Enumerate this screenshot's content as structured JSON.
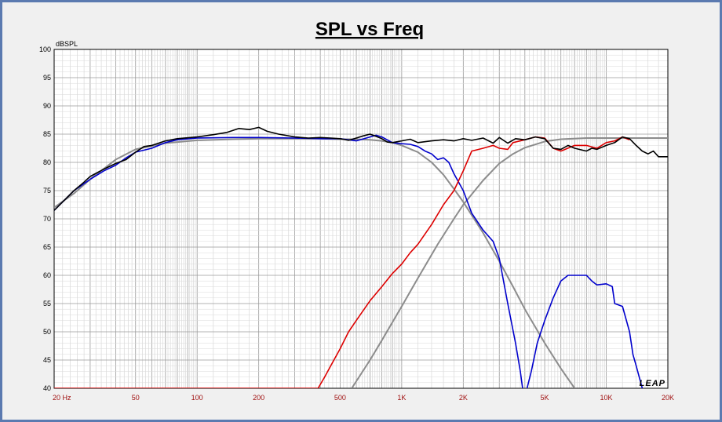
{
  "chart_data": {
    "type": "line",
    "title": "SPL vs Freq",
    "ylabel": "dBSPL",
    "x_scale": "log",
    "xlim": [
      20,
      20000
    ],
    "ylim": [
      40,
      100
    ],
    "y_ticks": [
      40,
      45,
      50,
      55,
      60,
      65,
      70,
      75,
      80,
      85,
      90,
      95,
      100
    ],
    "x_ticks": [
      {
        "value": 20,
        "label": "20  Hz"
      },
      {
        "value": 50,
        "label": "50"
      },
      {
        "value": 100,
        "label": "100"
      },
      {
        "value": 200,
        "label": "200"
      },
      {
        "value": 500,
        "label": "500"
      },
      {
        "value": 1000,
        "label": "1K"
      },
      {
        "value": 2000,
        "label": "2K"
      },
      {
        "value": 5000,
        "label": "5K"
      },
      {
        "value": 10000,
        "label": "10K"
      },
      {
        "value": 20000,
        "label": "20K"
      }
    ],
    "grid": true,
    "watermark": "LEAP",
    "colors": {
      "system": "#000000",
      "woofer": "#0000cc",
      "tweeter": "#dd0000",
      "target": "#8c8c8c",
      "tick_x": "#a01010",
      "tick_y": "#000000"
    },
    "series": [
      {
        "key": "target_lowpass",
        "color": "#8c8c8c",
        "points": [
          [
            20,
            72
          ],
          [
            25,
            74.5
          ],
          [
            30,
            77
          ],
          [
            40,
            80.5
          ],
          [
            50,
            82.3
          ],
          [
            70,
            83.4
          ],
          [
            100,
            83.9
          ],
          [
            150,
            84.1
          ],
          [
            200,
            84.2
          ],
          [
            300,
            84.2
          ],
          [
            400,
            84.2
          ],
          [
            500,
            84.1
          ],
          [
            600,
            84.1
          ],
          [
            700,
            84.0
          ],
          [
            800,
            83.8
          ],
          [
            900,
            83.5
          ],
          [
            1000,
            83.0
          ],
          [
            1200,
            81.8
          ],
          [
            1400,
            80
          ],
          [
            1600,
            77.8
          ],
          [
            1800,
            75.3
          ],
          [
            2000,
            73
          ],
          [
            2500,
            67.5
          ],
          [
            3000,
            62.5
          ],
          [
            3500,
            58
          ],
          [
            4000,
            54
          ],
          [
            5000,
            48
          ],
          [
            6000,
            43.5
          ],
          [
            7000,
            40
          ]
        ]
      },
      {
        "key": "target_highpass",
        "color": "#8c8c8c",
        "points": [
          [
            570,
            40
          ],
          [
            700,
            45
          ],
          [
            800,
            48.5
          ],
          [
            1000,
            54.5
          ],
          [
            1200,
            59.5
          ],
          [
            1500,
            65.5
          ],
          [
            1800,
            70
          ],
          [
            2000,
            72.5
          ],
          [
            2500,
            76.8
          ],
          [
            3000,
            79.8
          ],
          [
            3500,
            81.5
          ],
          [
            4000,
            82.6
          ],
          [
            5000,
            83.7
          ],
          [
            6000,
            84.1
          ],
          [
            8000,
            84.3
          ],
          [
            10000,
            84.3
          ],
          [
            15000,
            84.3
          ],
          [
            20000,
            84.3
          ]
        ]
      },
      {
        "key": "woofer",
        "color": "#0000cc",
        "points": [
          [
            20,
            71.5
          ],
          [
            22,
            73
          ],
          [
            25,
            75
          ],
          [
            30,
            77
          ],
          [
            35,
            78.5
          ],
          [
            40,
            79.5
          ],
          [
            45,
            80.8
          ],
          [
            50,
            81.8
          ],
          [
            60,
            82.5
          ],
          [
            70,
            83.5
          ],
          [
            80,
            84
          ],
          [
            100,
            84.3
          ],
          [
            150,
            84.4
          ],
          [
            200,
            84.4
          ],
          [
            300,
            84.3
          ],
          [
            400,
            84.2
          ],
          [
            500,
            84.2
          ],
          [
            600,
            83.8
          ],
          [
            700,
            84.5
          ],
          [
            750,
            84.8
          ],
          [
            800,
            84.5
          ],
          [
            900,
            83.5
          ],
          [
            1000,
            83.3
          ],
          [
            1100,
            83.2
          ],
          [
            1200,
            82.8
          ],
          [
            1300,
            82
          ],
          [
            1400,
            81.5
          ],
          [
            1500,
            80.5
          ],
          [
            1600,
            80.8
          ],
          [
            1700,
            80
          ],
          [
            1800,
            78
          ],
          [
            2000,
            75
          ],
          [
            2200,
            71
          ],
          [
            2500,
            68
          ],
          [
            2800,
            66
          ],
          [
            3000,
            63
          ],
          [
            3300,
            55
          ],
          [
            3600,
            48
          ],
          [
            3800,
            43
          ],
          [
            3900,
            40
          ]
        ]
      },
      {
        "key": "woofer_ultrasonic",
        "color": "#0000cc",
        "points": [
          [
            4100,
            40
          ],
          [
            4300,
            43
          ],
          [
            4600,
            48
          ],
          [
            5000,
            52
          ],
          [
            5500,
            56
          ],
          [
            6000,
            59
          ],
          [
            6500,
            60
          ],
          [
            8000,
            60
          ],
          [
            8500,
            59
          ],
          [
            9000,
            58.3
          ],
          [
            10000,
            58.5
          ],
          [
            10700,
            58
          ],
          [
            11000,
            55
          ],
          [
            12000,
            54.5
          ],
          [
            13000,
            50
          ],
          [
            13500,
            46
          ],
          [
            14000,
            44
          ],
          [
            15000,
            40
          ]
        ]
      },
      {
        "key": "tweeter",
        "color": "#dd0000",
        "points": [
          [
            20,
            40
          ],
          [
            390,
            40
          ],
          [
            420,
            42
          ],
          [
            450,
            44
          ],
          [
            500,
            47
          ],
          [
            550,
            50
          ],
          [
            600,
            52
          ],
          [
            700,
            55.5
          ],
          [
            800,
            58
          ],
          [
            900,
            60.3
          ],
          [
            1000,
            62
          ],
          [
            1100,
            64
          ],
          [
            1200,
            65.5
          ],
          [
            1400,
            69
          ],
          [
            1600,
            72.5
          ],
          [
            1800,
            75
          ],
          [
            2000,
            78.5
          ],
          [
            2200,
            82
          ],
          [
            2500,
            82.5
          ],
          [
            2800,
            83
          ],
          [
            3000,
            82.5
          ],
          [
            3300,
            82.3
          ],
          [
            3500,
            83.5
          ],
          [
            4000,
            84
          ],
          [
            4500,
            84.5
          ],
          [
            5000,
            84.3
          ],
          [
            5500,
            82.5
          ],
          [
            6000,
            82
          ],
          [
            7000,
            83
          ],
          [
            8000,
            83
          ],
          [
            9000,
            82.5
          ],
          [
            10000,
            83.5
          ],
          [
            11000,
            83.8
          ],
          [
            12000,
            84.5
          ],
          [
            13000,
            84
          ]
        ]
      },
      {
        "key": "system",
        "color": "#000000",
        "points": [
          [
            20,
            71.5
          ],
          [
            22,
            73
          ],
          [
            25,
            75
          ],
          [
            28,
            76.5
          ],
          [
            30,
            77.5
          ],
          [
            35,
            78.8
          ],
          [
            40,
            79.8
          ],
          [
            45,
            80.5
          ],
          [
            50,
            81.8
          ],
          [
            55,
            82.8
          ],
          [
            60,
            83
          ],
          [
            70,
            83.8
          ],
          [
            80,
            84.2
          ],
          [
            100,
            84.5
          ],
          [
            120,
            84.9
          ],
          [
            140,
            85.3
          ],
          [
            160,
            86
          ],
          [
            180,
            85.8
          ],
          [
            200,
            86.2
          ],
          [
            220,
            85.5
          ],
          [
            250,
            85
          ],
          [
            300,
            84.5
          ],
          [
            350,
            84.3
          ],
          [
            400,
            84.4
          ],
          [
            450,
            84.3
          ],
          [
            500,
            84.2
          ],
          [
            550,
            83.9
          ],
          [
            600,
            84.3
          ],
          [
            650,
            84.7
          ],
          [
            700,
            85
          ],
          [
            750,
            84.6
          ],
          [
            800,
            84.2
          ],
          [
            850,
            83.6
          ],
          [
            900,
            83.5
          ],
          [
            1000,
            83.8
          ],
          [
            1100,
            84.1
          ],
          [
            1200,
            83.5
          ],
          [
            1400,
            83.8
          ],
          [
            1600,
            84
          ],
          [
            1800,
            83.8
          ],
          [
            2000,
            84.2
          ],
          [
            2200,
            83.9
          ],
          [
            2500,
            84.3
          ],
          [
            2800,
            83.4
          ],
          [
            3000,
            84.4
          ],
          [
            3300,
            83.4
          ],
          [
            3600,
            84.2
          ],
          [
            4000,
            84
          ],
          [
            4500,
            84.5
          ],
          [
            5000,
            84.2
          ],
          [
            5500,
            82.5
          ],
          [
            6000,
            82.3
          ],
          [
            6500,
            83
          ],
          [
            7000,
            82.5
          ],
          [
            8000,
            82
          ],
          [
            8500,
            82.5
          ],
          [
            9000,
            82.3
          ],
          [
            10000,
            83
          ],
          [
            11000,
            83.5
          ],
          [
            12000,
            84.5
          ],
          [
            13000,
            84.2
          ],
          [
            14000,
            83
          ],
          [
            15000,
            82
          ],
          [
            16000,
            81.5
          ],
          [
            17000,
            82
          ],
          [
            18000,
            81
          ],
          [
            20000,
            81
          ]
        ]
      }
    ]
  }
}
